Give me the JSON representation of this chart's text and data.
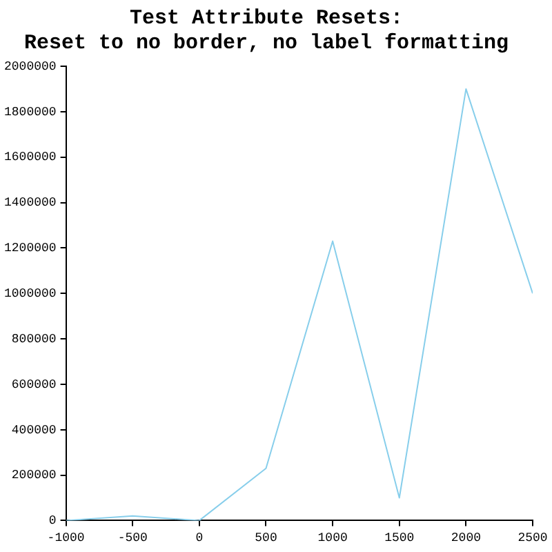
{
  "chart_data": {
    "type": "line",
    "title": "Test Attribute Resets:",
    "subtitle": "Reset to no border, no label formatting",
    "x": [
      -1000,
      -500,
      0,
      500,
      1000,
      1500,
      2000,
      2500
    ],
    "series": [
      {
        "color": "#87ceeb",
        "values": [
          0,
          20000,
          0,
          230000,
          1230000,
          100000,
          1900000,
          1000000
        ]
      }
    ],
    "xlim": [
      -1000,
      2500
    ],
    "xticks": [
      -1000,
      -500,
      0,
      500,
      1000,
      1500,
      2000,
      2500
    ],
    "ylim": [
      0,
      2000000
    ],
    "yticks": [
      0,
      200000,
      400000,
      600000,
      800000,
      1000000,
      1200000,
      1400000,
      1600000,
      1800000,
      2000000
    ],
    "grid": false,
    "legend": false,
    "marker": "none",
    "line_style": "solid"
  }
}
